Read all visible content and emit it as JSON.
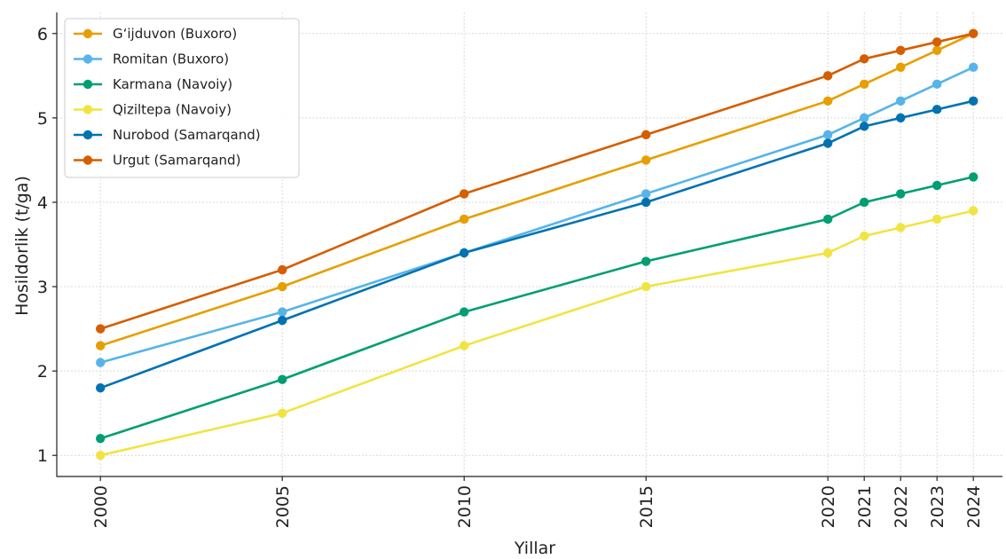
{
  "chart_data": {
    "type": "line",
    "x": [
      2000,
      2005,
      2010,
      2015,
      2020,
      2021,
      2022,
      2023,
      2024
    ],
    "xlabel": "Yillar",
    "ylabel": "Hosildorlik (t/ga)",
    "xlim": [
      1998.8,
      2024.8
    ],
    "ylim": [
      0.75,
      6.25
    ],
    "yticks": [
      1,
      2,
      3,
      4,
      5,
      6
    ],
    "grid": true,
    "legend_position": "top-left",
    "series": [
      {
        "name": "G‘ijduvon (Buxoro)",
        "color": "#E69F00",
        "values": [
          2.3,
          3.0,
          3.8,
          4.5,
          5.2,
          5.4,
          5.6,
          5.8,
          6.0
        ]
      },
      {
        "name": "Romitan (Buxoro)",
        "color": "#56B4E9",
        "values": [
          2.1,
          2.7,
          3.4,
          4.1,
          4.8,
          5.0,
          5.2,
          5.4,
          5.6
        ]
      },
      {
        "name": "Karmana (Navoiy)",
        "color": "#009E73",
        "values": [
          1.2,
          1.9,
          2.7,
          3.3,
          3.8,
          4.0,
          4.1,
          4.2,
          4.3
        ]
      },
      {
        "name": "Qiziltepa (Navoiy)",
        "color": "#F0E442",
        "values": [
          1.0,
          1.5,
          2.3,
          3.0,
          3.4,
          3.6,
          3.7,
          3.8,
          3.9
        ]
      },
      {
        "name": "Nurobod (Samarqand)",
        "color": "#0072B2",
        "values": [
          1.8,
          2.6,
          3.4,
          4.0,
          4.7,
          4.9,
          5.0,
          5.1,
          5.2
        ]
      },
      {
        "name": "Urgut (Samarqand)",
        "color": "#D55E00",
        "values": [
          2.5,
          3.2,
          4.1,
          4.8,
          5.5,
          5.7,
          5.8,
          5.9,
          6.0
        ]
      }
    ]
  }
}
